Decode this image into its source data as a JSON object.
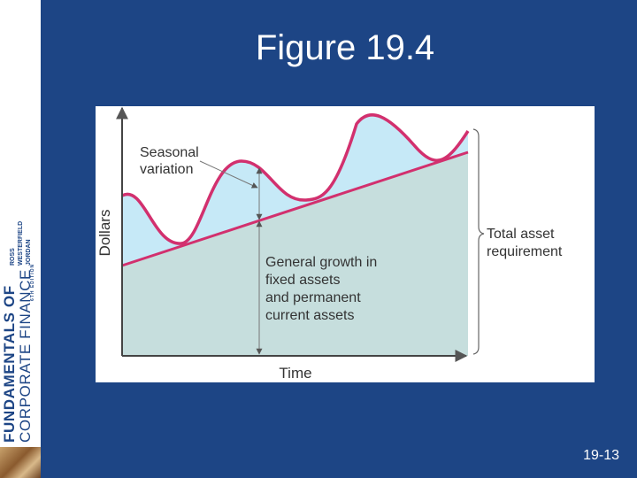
{
  "slide": {
    "title": "Figure 19.4",
    "number": "19-13"
  },
  "spine": {
    "line1": "FUNDAMENTALS OF",
    "line2": "CORPORATE FINANCE",
    "author1": "ROSS",
    "author2": "WESTERFIELD",
    "author3": "JORDAN",
    "edition": "6TH EDITION"
  },
  "figure": {
    "y_axis_label": "Dollars",
    "x_axis_label": "Time",
    "seasonal_label_line1": "Seasonal",
    "seasonal_label_line2": "variation",
    "growth_label_line1": "General growth in",
    "growth_label_line2": "fixed assets",
    "growth_label_line3": "and permanent",
    "growth_label_line4": "current assets",
    "total_label_line1": "Total asset",
    "total_label_line2": "requirement",
    "colors": {
      "panel_background": "#1d4585",
      "permanent_area": "#c6dedd",
      "seasonal_area": "#c6e9f7",
      "trend_line": "#d2306e",
      "seasonal_curve": "#d2306e",
      "axis": "#444444"
    }
  }
}
